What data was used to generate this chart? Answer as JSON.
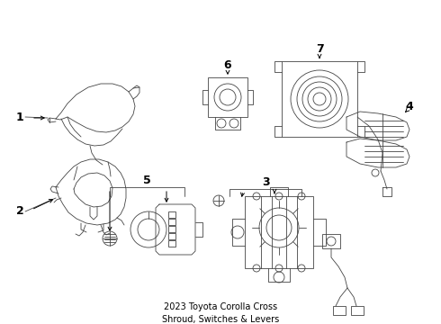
{
  "title": "2023 Toyota Corolla Cross\nShroud, Switches & Levers",
  "bg_color": "#ffffff",
  "line_color": "#444444",
  "label_color": "#000000",
  "label_fontsize": 8,
  "title_fontsize": 7,
  "figsize": [
    4.9,
    3.6
  ],
  "dpi": 100
}
